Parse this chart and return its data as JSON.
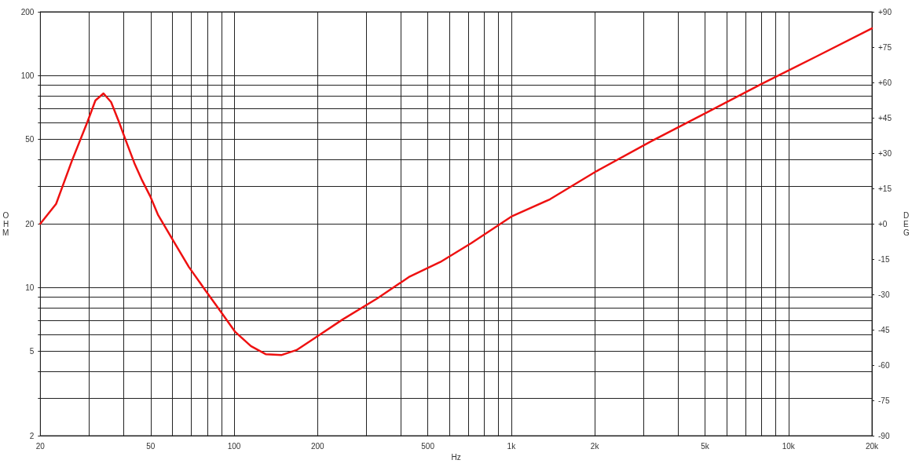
{
  "chart_data": {
    "type": "line",
    "xlabel": "Hz",
    "ylabel": "OHM",
    "y2label": "DEG",
    "log": "xy",
    "grid": true,
    "marker": "none",
    "line_style": "solid",
    "xlim": [
      20,
      20000
    ],
    "ylim": [
      2,
      200
    ],
    "y2lim": [
      -90,
      90
    ],
    "xticks": [
      20,
      {
        "value": 30,
        "label": null
      },
      {
        "value": 40,
        "label": null
      },
      50,
      {
        "value": 60,
        "label": null
      },
      {
        "value": 70,
        "label": null
      },
      {
        "value": 80,
        "label": null
      },
      {
        "value": 90,
        "label": null
      },
      100,
      200,
      {
        "value": 300,
        "label": null
      },
      {
        "value": 400,
        "label": null
      },
      500,
      {
        "value": 600,
        "label": null
      },
      {
        "value": 700,
        "label": null
      },
      {
        "value": 800,
        "label": null
      },
      {
        "value": 900,
        "label": null
      },
      {
        "value": 1000,
        "label": "1k"
      },
      {
        "value": 2000,
        "label": "2k"
      },
      {
        "value": 3000,
        "label": null
      },
      {
        "value": 4000,
        "label": null
      },
      {
        "value": 5000,
        "label": "5k"
      },
      {
        "value": 6000,
        "label": null
      },
      {
        "value": 7000,
        "label": null
      },
      {
        "value": 8000,
        "label": null
      },
      {
        "value": 9000,
        "label": null
      },
      {
        "value": 10000,
        "label": "10k"
      },
      {
        "value": 20000,
        "label": "20k"
      }
    ],
    "yticks": [
      2,
      {
        "value": 3,
        "label": null
      },
      {
        "value": 4,
        "label": null
      },
      5,
      {
        "value": 6,
        "label": null
      },
      {
        "value": 7,
        "label": null
      },
      {
        "value": 8,
        "label": null
      },
      {
        "value": 9,
        "label": null
      },
      10,
      20,
      {
        "value": 30,
        "label": null
      },
      {
        "value": 40,
        "label": null
      },
      50,
      {
        "value": 60,
        "label": null
      },
      {
        "value": 70,
        "label": null
      },
      {
        "value": 80,
        "label": null
      },
      {
        "value": 90,
        "label": null
      },
      100,
      200
    ],
    "y2ticks": [
      -90,
      -75,
      -60,
      -45,
      -30,
      -15,
      {
        "value": 0,
        "label": "+0"
      },
      {
        "value": 15,
        "label": "+15"
      },
      {
        "value": 30,
        "label": "+30"
      },
      {
        "value": 45,
        "label": "+45"
      },
      {
        "value": 60,
        "label": "+60"
      },
      {
        "value": 75,
        "label": "+75"
      },
      {
        "value": 90,
        "label": "+90"
      }
    ],
    "series": [
      {
        "color": "#ee1111",
        "x": [
          20,
          22.8,
          26,
          29.6,
          31.6,
          33.8,
          36,
          38.4,
          41,
          43.7,
          46.6,
          49.8,
          53.1,
          60.4,
          68.7,
          78.1,
          88.7,
          101,
          115,
          130,
          148,
          168,
          191,
          246,
          329,
          427,
          555,
          717,
          1000,
          1380,
          2030,
          3200,
          5100,
          8000,
          12600,
          20000
        ],
        "values": [
          20,
          24.8,
          39.6,
          60.6,
          76.3,
          82.4,
          75,
          60.6,
          48.1,
          38.6,
          32,
          27,
          22.1,
          16.6,
          12.5,
          9.86,
          7.83,
          6.17,
          5.29,
          4.85,
          4.8,
          5.07,
          5.66,
          7.06,
          8.9,
          11.2,
          13.2,
          16.2,
          21.6,
          26.1,
          35.4,
          49,
          67.2,
          91.3,
          123,
          167
        ]
      }
    ]
  }
}
